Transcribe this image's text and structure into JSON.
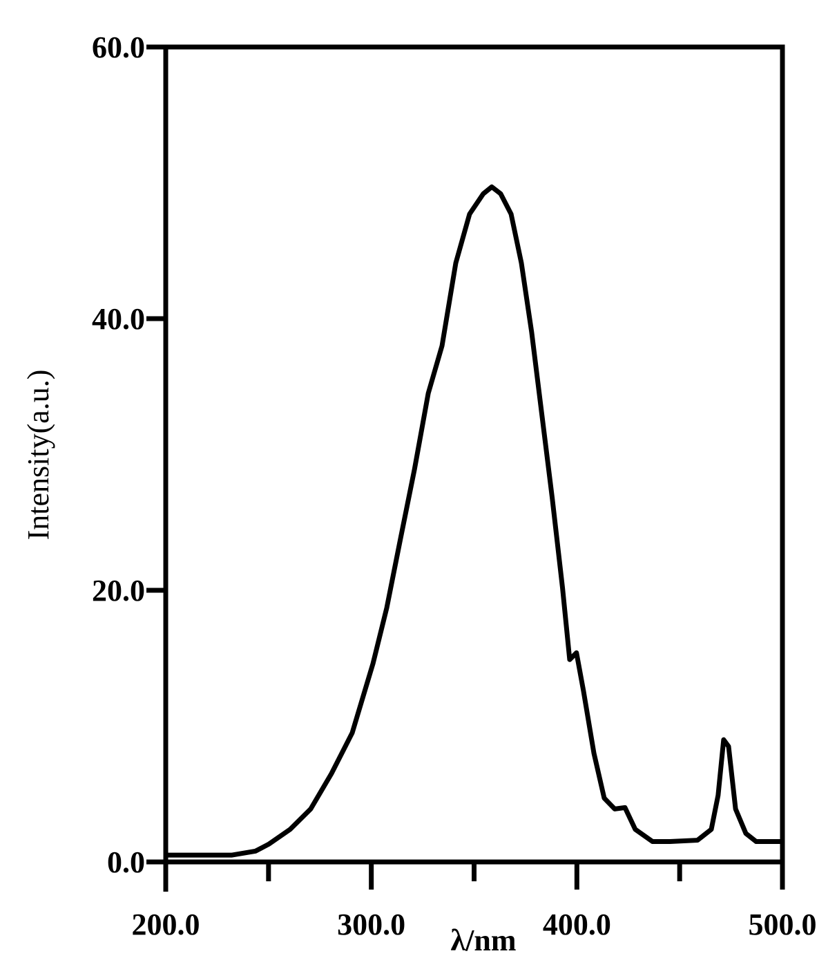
{
  "chart_data": {
    "type": "line",
    "xlabel": "λ/nm",
    "ylabel": "Intensity(a.u.)",
    "x": [
      200,
      232,
      243.7,
      250,
      260.5,
      270.5,
      280.6,
      290.7,
      300.8,
      307.5,
      314.2,
      321,
      327.7,
      334.4,
      341.1,
      347.8,
      354.5,
      358.6,
      362.9,
      368,
      373,
      378,
      383,
      388,
      393,
      396.5,
      399.8,
      403.2,
      408.3,
      413.3,
      418.4,
      423.4,
      428.4,
      436.8,
      445.2,
      458.7,
      465.4,
      468.7,
      471.4,
      473.8,
      477.2,
      482.2,
      487.2,
      500
    ],
    "series": [
      {
        "color": "#000000",
        "values": [
          0.5,
          0.5,
          0.8,
          1.3,
          2.4,
          3.9,
          6.5,
          9.5,
          14.6,
          18.7,
          23.8,
          28.9,
          34.5,
          38.0,
          44.1,
          47.7,
          49.2,
          49.7,
          49.2,
          47.7,
          44.1,
          39.0,
          32.9,
          26.8,
          20.2,
          14.9,
          15.4,
          12.6,
          8.0,
          4.7,
          3.9,
          4.0,
          2.4,
          1.5,
          1.5,
          1.6,
          2.4,
          4.9,
          9.0,
          8.5,
          3.9,
          2.1,
          1.5,
          1.5
        ]
      }
    ],
    "xlim": [
      200,
      500
    ],
    "xticks": [
      {
        "value": 200,
        "label": "200.0"
      },
      {
        "value": 300,
        "label": "300.0"
      },
      {
        "value": 400,
        "label": "400.0"
      },
      {
        "value": 500,
        "label": "500.0"
      }
    ],
    "xminorticks": [
      250,
      350,
      450
    ],
    "ylim": [
      0,
      60
    ],
    "yticks": [
      {
        "value": 0,
        "label": "0.0"
      },
      {
        "value": 20,
        "label": "20.0"
      },
      {
        "value": 40,
        "label": "40.0"
      },
      {
        "value": 60,
        "label": "60.0"
      }
    ]
  }
}
